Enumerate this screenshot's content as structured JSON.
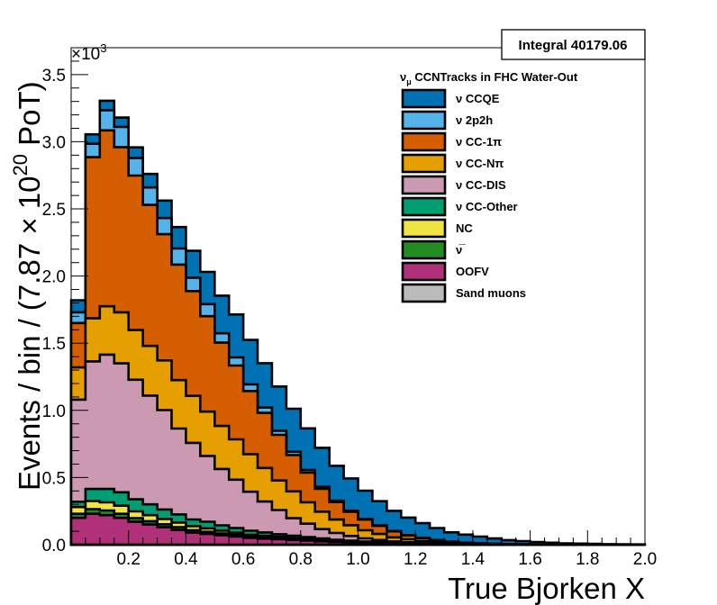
{
  "chart_data": {
    "type": "stacked-histogram",
    "xlabel": "True Bjorken X",
    "ylabel": "Events / bin / (7.87 × 10",
    "ylabel_exp": "20",
    "ylabel_end": " PoT)",
    "y_multiplier_base": "×10",
    "y_multiplier_exp": "3",
    "xlim": [
      0,
      2.0
    ],
    "ylim": [
      0,
      3.7
    ],
    "x_ticks": [
      0.2,
      0.4,
      0.6,
      0.8,
      1.0,
      1.2,
      1.4,
      1.6,
      1.8,
      2.0
    ],
    "x_tick_labels": [
      "0.2",
      "0.4",
      "0.6",
      "0.8",
      "1.0",
      "1.2",
      "1.4",
      "1.6",
      "1.8",
      "2.0"
    ],
    "y_ticks": [
      0,
      0.5,
      1.0,
      1.5,
      2.0,
      2.5,
      3.0,
      3.5
    ],
    "y_tick_labels": [
      "0.0",
      "0.5",
      "1.0",
      "1.5",
      "2.0",
      "2.5",
      "3.0",
      "3.5"
    ],
    "bin_edges": [
      0.0,
      0.05,
      0.1,
      0.15,
      0.2,
      0.25,
      0.3,
      0.35,
      0.4,
      0.45,
      0.5,
      0.55,
      0.6,
      0.65,
      0.7,
      0.75,
      0.8,
      0.85,
      0.9,
      0.95,
      1.0,
      1.05,
      1.1,
      1.15,
      1.2,
      1.25,
      1.3,
      1.35,
      1.4,
      1.45,
      1.5,
      1.55,
      1.6,
      1.65,
      1.7,
      1.75,
      1.8,
      1.85,
      1.9,
      1.95,
      2.0
    ],
    "stat_box": {
      "label": "Integral",
      "value": "40179.06"
    },
    "legend_title": "νμ CCNTracks in FHC Water-Out",
    "legend_title_main": "ν",
    "legend_title_sub": "μ",
    "legend_title_rest": " CCNTracks in FHC Water-Out",
    "legend": [
      {
        "name": "ν CCQE",
        "color": "#0071b2"
      },
      {
        "name": "ν 2p2h",
        "color": "#56b3e9"
      },
      {
        "name": "ν CC-1π",
        "color": "#d55e00"
      },
      {
        "name": "ν CC-Nπ",
        "color": "#e69f00"
      },
      {
        "name": "ν CC-DIS",
        "color": "#cc99b3"
      },
      {
        "name": "ν CC-Other",
        "color": "#009e73"
      },
      {
        "name": "NC",
        "color": "#f0e442"
      },
      {
        "name": "ν̅",
        "color": "#228b22"
      },
      {
        "name": "OOFV",
        "color": "#b0307a"
      },
      {
        "name": "Sand muons",
        "color": "#bbbbbb"
      }
    ],
    "series": [
      {
        "name": "ν CCQE",
        "color": "#0071b2",
        "values": [
          0.09,
          0.07,
          0.07,
          0.07,
          0.08,
          0.1,
          0.13,
          0.16,
          0.2,
          0.24,
          0.28,
          0.32,
          0.33,
          0.33,
          0.33,
          0.32,
          0.31,
          0.29,
          0.26,
          0.24,
          0.21,
          0.18,
          0.15,
          0.13,
          0.11,
          0.09,
          0.07,
          0.06,
          0.05,
          0.04,
          0.03,
          0.025,
          0.02,
          0.015,
          0.01,
          0.008,
          0.006,
          0.004,
          0.003,
          0.002
        ]
      },
      {
        "name": "ν 2p2h",
        "color": "#56b3e9",
        "values": [
          0.08,
          0.1,
          0.15,
          0.15,
          0.13,
          0.13,
          0.12,
          0.12,
          0.1,
          0.09,
          0.07,
          0.06,
          0.05,
          0.04,
          0.03,
          0.025,
          0.02,
          0.015,
          0.01,
          0.008,
          0.005,
          0.004,
          0.003,
          0.002,
          0.001,
          0.001,
          0,
          0,
          0,
          0,
          0,
          0,
          0,
          0,
          0,
          0,
          0,
          0,
          0,
          0
        ]
      },
      {
        "name": "ν CC-1π",
        "color": "#d55e00",
        "values": [
          0.33,
          1.2,
          1.31,
          1.23,
          1.15,
          1.05,
          0.94,
          0.86,
          0.78,
          0.71,
          0.62,
          0.55,
          0.47,
          0.41,
          0.34,
          0.27,
          0.22,
          0.17,
          0.13,
          0.1,
          0.08,
          0.06,
          0.045,
          0.03,
          0.022,
          0.015,
          0.01,
          0.007,
          0.005,
          0.003,
          0.002,
          0.001,
          0,
          0,
          0,
          0,
          0,
          0,
          0,
          0
        ]
      },
      {
        "name": "ν CC-Nπ",
        "color": "#e69f00",
        "values": [
          0.24,
          0.32,
          0.36,
          0.38,
          0.37,
          0.37,
          0.37,
          0.36,
          0.35,
          0.33,
          0.32,
          0.3,
          0.28,
          0.25,
          0.22,
          0.2,
          0.16,
          0.13,
          0.1,
          0.08,
          0.06,
          0.045,
          0.03,
          0.022,
          0.016,
          0.01,
          0.007,
          0.005,
          0.003,
          0.002,
          0.001,
          0,
          0,
          0,
          0,
          0,
          0,
          0,
          0,
          0
        ]
      },
      {
        "name": "ν CC-DIS",
        "color": "#cc99b3",
        "values": [
          0.76,
          0.95,
          1.0,
          0.96,
          0.89,
          0.81,
          0.74,
          0.64,
          0.57,
          0.49,
          0.42,
          0.36,
          0.29,
          0.23,
          0.18,
          0.13,
          0.1,
          0.07,
          0.05,
          0.035,
          0.024,
          0.016,
          0.01,
          0.007,
          0.005,
          0.003,
          0.002,
          0.001,
          0,
          0,
          0,
          0,
          0,
          0,
          0,
          0,
          0,
          0,
          0,
          0
        ]
      },
      {
        "name": "ν CC-Other",
        "color": "#009e73",
        "values": [
          0.04,
          0.09,
          0.1,
          0.1,
          0.09,
          0.08,
          0.07,
          0.06,
          0.05,
          0.05,
          0.04,
          0.035,
          0.03,
          0.025,
          0.02,
          0.017,
          0.014,
          0.011,
          0.009,
          0.007,
          0.005,
          0.004,
          0.003,
          0.002,
          0.001,
          0.001,
          0,
          0,
          0,
          0,
          0,
          0,
          0,
          0,
          0,
          0,
          0,
          0,
          0,
          0
        ]
      },
      {
        "name": "NC",
        "color": "#f0e442",
        "values": [
          0.05,
          0.06,
          0.06,
          0.06,
          0.05,
          0.045,
          0.04,
          0.035,
          0.03,
          0.025,
          0.02,
          0.017,
          0.014,
          0.012,
          0.01,
          0.008,
          0.006,
          0.005,
          0.004,
          0.003,
          0.002,
          0.002,
          0.001,
          0.001,
          0,
          0,
          0,
          0,
          0,
          0,
          0,
          0,
          0,
          0,
          0,
          0,
          0,
          0,
          0,
          0
        ]
      },
      {
        "name": "ν̅",
        "color": "#228b22",
        "values": [
          0.03,
          0.035,
          0.035,
          0.03,
          0.028,
          0.025,
          0.022,
          0.02,
          0.018,
          0.016,
          0.014,
          0.012,
          0.01,
          0.009,
          0.008,
          0.007,
          0.006,
          0.005,
          0.004,
          0.003,
          0.002,
          0.002,
          0.001,
          0.001,
          0,
          0,
          0,
          0,
          0,
          0,
          0,
          0,
          0,
          0,
          0,
          0,
          0,
          0,
          0,
          0
        ]
      },
      {
        "name": "OOFV",
        "color": "#b0307a",
        "values": [
          0.2,
          0.23,
          0.22,
          0.2,
          0.17,
          0.15,
          0.13,
          0.11,
          0.09,
          0.08,
          0.07,
          0.06,
          0.05,
          0.045,
          0.04,
          0.035,
          0.03,
          0.025,
          0.02,
          0.017,
          0.014,
          0.011,
          0.009,
          0.007,
          0.005,
          0.004,
          0.003,
          0.002,
          0.002,
          0.001,
          0.001,
          0.001,
          0,
          0,
          0,
          0,
          0,
          0,
          0,
          0
        ]
      },
      {
        "name": "Sand muons",
        "color": "#bbbbbb",
        "values": [
          0,
          0,
          0,
          0,
          0,
          0,
          0,
          0,
          0,
          0,
          0,
          0,
          0,
          0,
          0,
          0,
          0,
          0,
          0,
          0,
          0,
          0,
          0,
          0,
          0,
          0,
          0,
          0,
          0,
          0,
          0,
          0,
          0,
          0,
          0,
          0,
          0,
          0,
          0,
          0
        ]
      }
    ]
  }
}
